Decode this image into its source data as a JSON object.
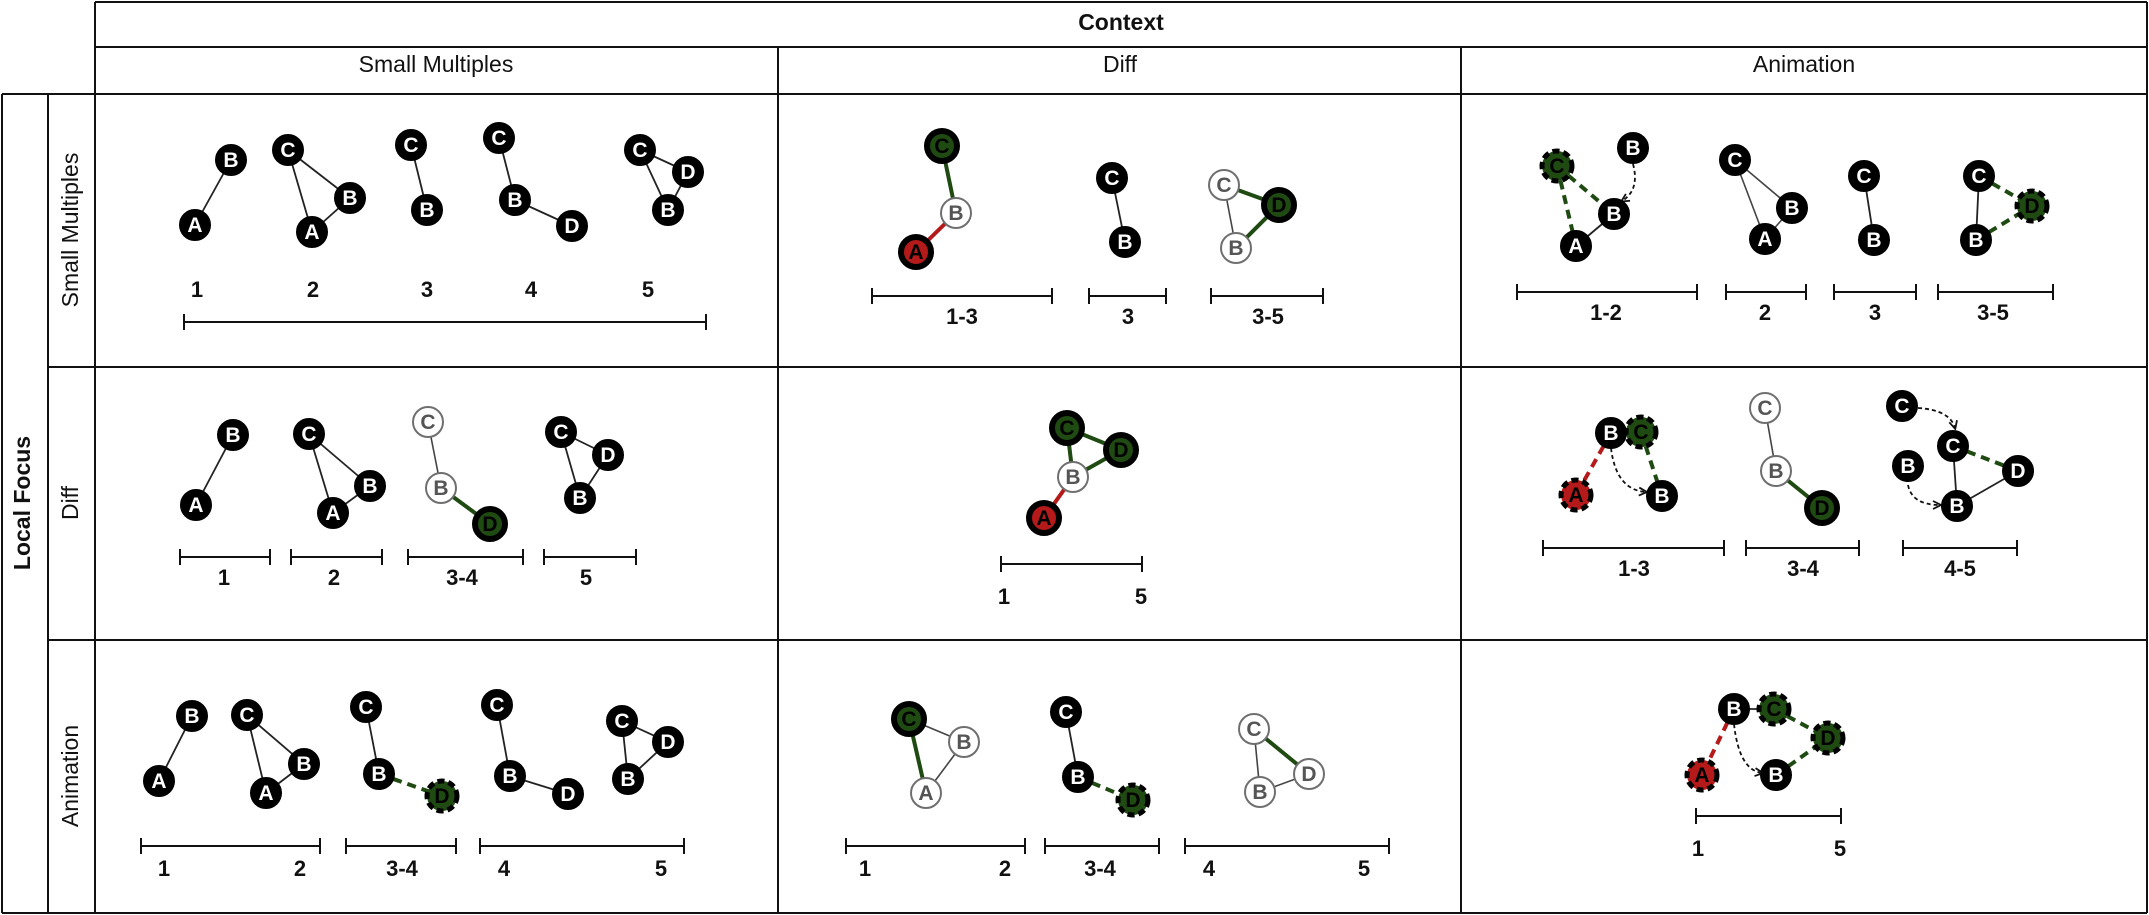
{
  "headers": {
    "context": "Context",
    "local_focus": "Local Focus",
    "columns": [
      "Small Multiples",
      "Diff",
      "Animation"
    ],
    "rows": [
      "Small Multiples",
      "Diff",
      "Animation"
    ]
  },
  "colors": {
    "node_black": "#000000",
    "node_white": "#ffffff",
    "added_green": "#1f4a12",
    "removed_red": "#b51a1a",
    "gray_outline": "#6f6f6f",
    "edge": "#222222"
  },
  "legend": {
    "solid_black": "present",
    "white_outline": "ghost / absent",
    "green": "added",
    "red": "removed",
    "dashed_outline": "animated",
    "dashed_arrow": "movement"
  },
  "cells": {
    "sm_sm": {
      "timeline_labels": [
        "1",
        "2",
        "3",
        "4",
        "5"
      ]
    },
    "sm_diff": {
      "timeline_labels": [
        "1-3",
        "3",
        "3-5"
      ]
    },
    "sm_anim": {
      "timeline_labels": [
        "1-2",
        "2",
        "3",
        "3-5"
      ]
    },
    "diff_sm": {
      "timeline_labels": [
        "1",
        "2",
        "3-4",
        "5"
      ]
    },
    "diff_diff": {
      "timeline_labels": [
        "1",
        "5"
      ]
    },
    "diff_anim": {
      "timeline_labels": [
        "1-3",
        "3-4",
        "4-5"
      ]
    },
    "anim_sm": {
      "timeline_labels": [
        "1",
        "2",
        "3-4",
        "4",
        "5"
      ]
    },
    "anim_diff": {
      "timeline_labels": [
        "1",
        "2",
        "3-4",
        "4",
        "5"
      ]
    },
    "anim_anim": {
      "timeline_labels": [
        "1",
        "5"
      ]
    }
  }
}
